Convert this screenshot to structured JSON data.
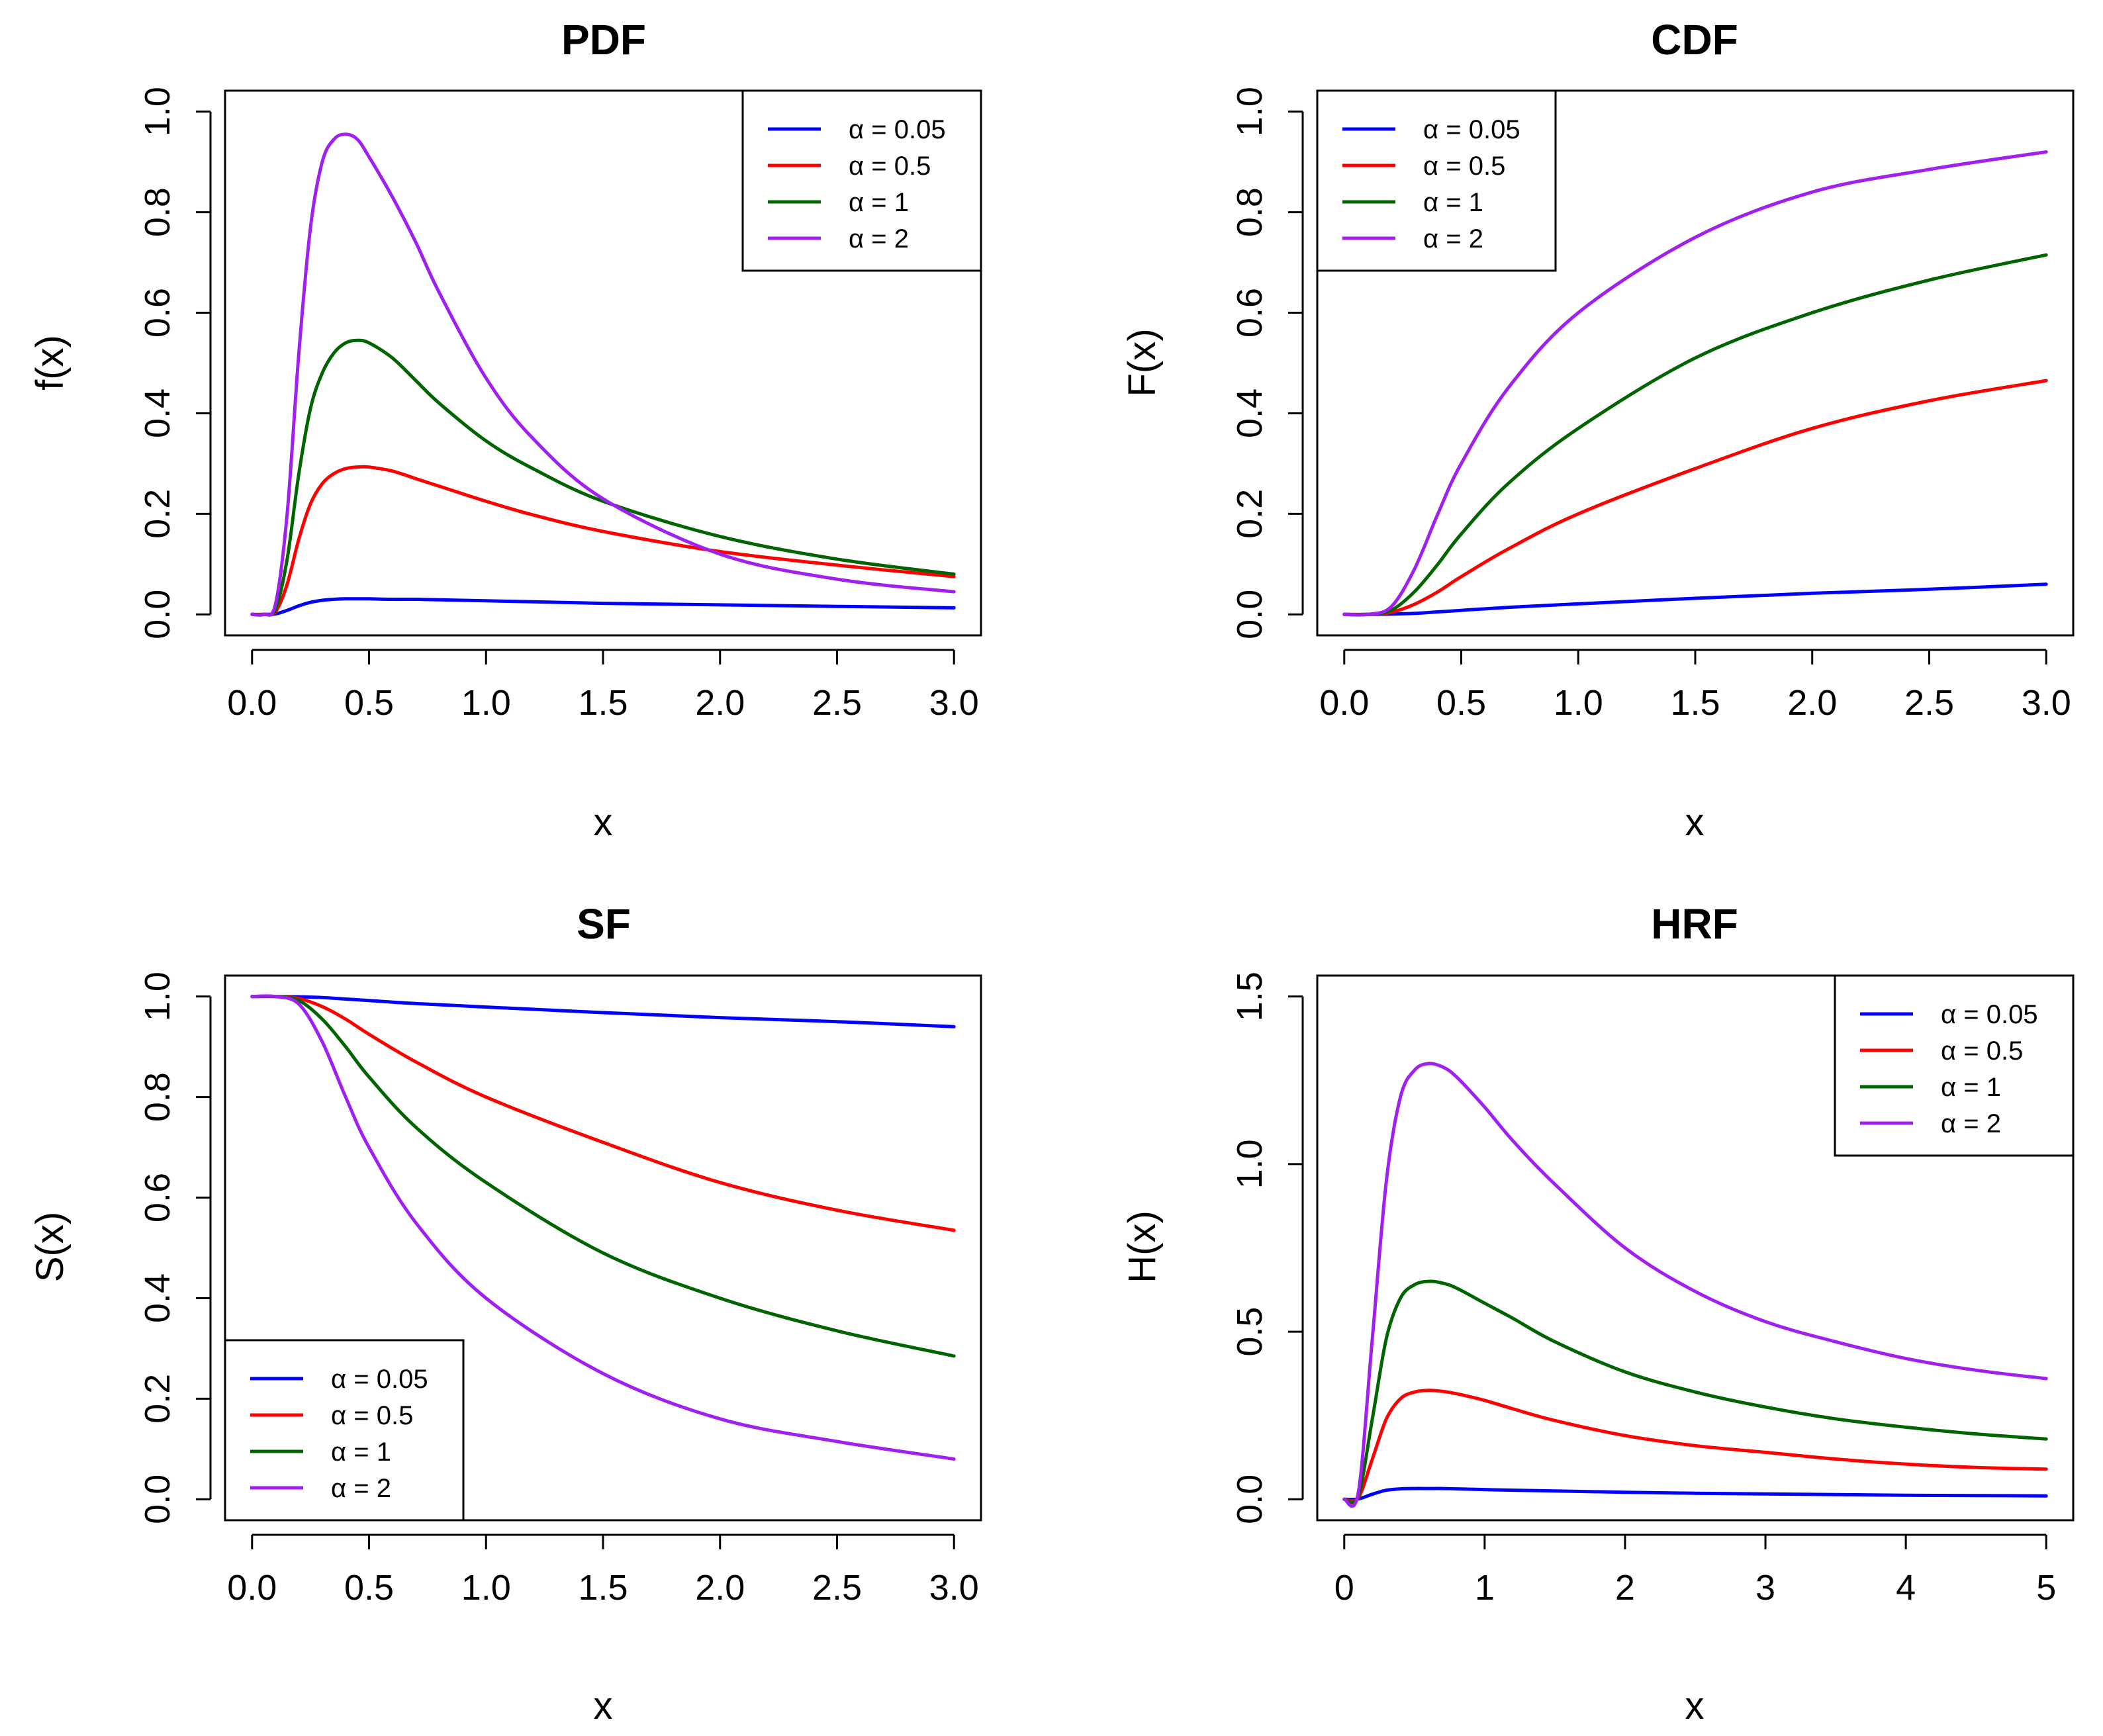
{
  "chart_data": [
    {
      "id": "pdf",
      "type": "line",
      "title": "PDF",
      "xlabel": "x",
      "ylabel": "f(x)",
      "xlim": [
        0,
        3
      ],
      "ylim": [
        0,
        1
      ],
      "xticks": [
        "0.0",
        "0.5",
        "1.0",
        "1.5",
        "2.0",
        "2.5",
        "3.0"
      ],
      "yticks": [
        "0.0",
        "0.2",
        "0.4",
        "0.6",
        "0.8",
        "1.0"
      ],
      "legend_position": "top-right",
      "x": [
        0,
        0.05,
        0.1,
        0.15,
        0.2,
        0.25,
        0.3,
        0.35,
        0.4,
        0.45,
        0.5,
        0.6,
        0.7,
        0.8,
        1.0,
        1.2,
        1.5,
        2.0,
        2.5,
        3.0
      ],
      "series": [
        {
          "name": "α = 0.05",
          "color": "#0000ff",
          "values": [
            0,
            0,
            0.001,
            0.008,
            0.017,
            0.024,
            0.028,
            0.03,
            0.031,
            0.031,
            0.031,
            0.03,
            0.03,
            0.029,
            0.027,
            0.025,
            0.022,
            0.019,
            0.016,
            0.013
          ]
        },
        {
          "name": "α = 0.5",
          "color": "#ff0000",
          "values": [
            0,
            0,
            0.005,
            0.06,
            0.15,
            0.22,
            0.26,
            0.28,
            0.29,
            0.293,
            0.293,
            0.285,
            0.27,
            0.255,
            0.225,
            0.198,
            0.165,
            0.125,
            0.098,
            0.075
          ]
        },
        {
          "name": "α = 1",
          "color": "#006400",
          "values": [
            0,
            0,
            0.01,
            0.11,
            0.28,
            0.41,
            0.48,
            0.52,
            0.54,
            0.545,
            0.54,
            0.51,
            0.465,
            0.42,
            0.345,
            0.29,
            0.225,
            0.155,
            0.11,
            0.08
          ]
        },
        {
          "name": "α = 2",
          "color": "#a020f0",
          "values": [
            0,
            0,
            0.02,
            0.2,
            0.52,
            0.77,
            0.9,
            0.945,
            0.955,
            0.945,
            0.91,
            0.83,
            0.74,
            0.64,
            0.47,
            0.35,
            0.23,
            0.12,
            0.07,
            0.045
          ]
        }
      ]
    },
    {
      "id": "cdf",
      "type": "line",
      "title": "CDF",
      "xlabel": "x",
      "ylabel": "F(x)",
      "xlim": [
        0,
        3
      ],
      "ylim": [
        0,
        1
      ],
      "xticks": [
        "0.0",
        "0.5",
        "1.0",
        "1.5",
        "2.0",
        "2.5",
        "3.0"
      ],
      "yticks": [
        "0.0",
        "0.2",
        "0.4",
        "0.6",
        "0.8",
        "1.0"
      ],
      "legend_position": "top-left",
      "x": [
        0,
        0.1,
        0.2,
        0.3,
        0.4,
        0.5,
        0.7,
        1.0,
        1.5,
        2.0,
        2.5,
        3.0
      ],
      "series": [
        {
          "name": "α = 0.05",
          "color": "#0000ff",
          "values": [
            0,
            0,
            0.0005,
            0.002,
            0.005,
            0.008,
            0.014,
            0.021,
            0.032,
            0.042,
            0.05,
            0.06
          ]
        },
        {
          "name": "α = 0.5",
          "color": "#ff0000",
          "values": [
            0,
            0,
            0.004,
            0.02,
            0.045,
            0.075,
            0.13,
            0.2,
            0.29,
            0.37,
            0.425,
            0.465
          ]
        },
        {
          "name": "α = 1",
          "color": "#006400",
          "values": [
            0,
            0,
            0.008,
            0.045,
            0.1,
            0.16,
            0.26,
            0.37,
            0.51,
            0.6,
            0.665,
            0.715
          ]
        },
        {
          "name": "α = 2",
          "color": "#a020f0",
          "values": [
            0,
            0,
            0.015,
            0.09,
            0.2,
            0.3,
            0.45,
            0.6,
            0.75,
            0.84,
            0.885,
            0.92
          ]
        }
      ]
    },
    {
      "id": "sf",
      "type": "line",
      "title": "SF",
      "xlabel": "x",
      "ylabel": "S(x)",
      "xlim": [
        0,
        3
      ],
      "ylim": [
        0,
        1
      ],
      "xticks": [
        "0.0",
        "0.5",
        "1.0",
        "1.5",
        "2.0",
        "2.5",
        "3.0"
      ],
      "yticks": [
        "0.0",
        "0.2",
        "0.4",
        "0.6",
        "0.8",
        "1.0"
      ],
      "legend_position": "bottom-left",
      "x": [
        0,
        0.1,
        0.2,
        0.3,
        0.4,
        0.5,
        0.7,
        1.0,
        1.5,
        2.0,
        2.5,
        3.0
      ],
      "series": [
        {
          "name": "α = 0.05",
          "color": "#0000ff",
          "values": [
            1,
            1,
            0.9995,
            0.998,
            0.995,
            0.992,
            0.986,
            0.979,
            0.968,
            0.958,
            0.95,
            0.94
          ]
        },
        {
          "name": "α = 0.5",
          "color": "#ff0000",
          "values": [
            1,
            1,
            0.996,
            0.98,
            0.955,
            0.925,
            0.87,
            0.8,
            0.71,
            0.63,
            0.575,
            0.535
          ]
        },
        {
          "name": "α = 1",
          "color": "#006400",
          "values": [
            1,
            1,
            0.992,
            0.955,
            0.9,
            0.84,
            0.74,
            0.63,
            0.49,
            0.4,
            0.335,
            0.285
          ]
        },
        {
          "name": "α = 2",
          "color": "#a020f0",
          "values": [
            1,
            1,
            0.985,
            0.91,
            0.8,
            0.7,
            0.55,
            0.4,
            0.25,
            0.16,
            0.115,
            0.08
          ]
        }
      ]
    },
    {
      "id": "hrf",
      "type": "line",
      "title": "HRF",
      "xlabel": "x",
      "ylabel": "H(x)",
      "xlim": [
        0,
        5
      ],
      "ylim": [
        0,
        1.5
      ],
      "xticks": [
        "0",
        "1",
        "2",
        "3",
        "4",
        "5"
      ],
      "yticks": [
        "0.0",
        "0.5",
        "1.0",
        "1.5"
      ],
      "legend_position": "top-right",
      "x": [
        0,
        0.1,
        0.2,
        0.3,
        0.4,
        0.5,
        0.6,
        0.7,
        0.8,
        1.0,
        1.2,
        1.5,
        2.0,
        2.5,
        3.0,
        3.5,
        4.0,
        4.5,
        5.0
      ],
      "series": [
        {
          "name": "α = 0.05",
          "color": "#0000ff",
          "values": [
            0,
            0.001,
            0.015,
            0.027,
            0.031,
            0.032,
            0.032,
            0.032,
            0.031,
            0.029,
            0.027,
            0.025,
            0.021,
            0.018,
            0.016,
            0.014,
            0.012,
            0.011,
            0.01
          ]
        },
        {
          "name": "α = 0.5",
          "color": "#ff0000",
          "values": [
            0,
            0.005,
            0.12,
            0.24,
            0.3,
            0.32,
            0.325,
            0.322,
            0.315,
            0.295,
            0.27,
            0.235,
            0.19,
            0.16,
            0.14,
            0.12,
            0.105,
            0.095,
            0.09
          ]
        },
        {
          "name": "α = 1",
          "color": "#006400",
          "values": [
            0,
            0.01,
            0.24,
            0.48,
            0.6,
            0.64,
            0.65,
            0.645,
            0.63,
            0.585,
            0.54,
            0.47,
            0.38,
            0.32,
            0.275,
            0.24,
            0.215,
            0.195,
            0.18
          ]
        },
        {
          "name": "α = 2",
          "color": "#a020f0",
          "values": [
            0,
            0.02,
            0.48,
            0.95,
            1.2,
            1.28,
            1.3,
            1.29,
            1.26,
            1.17,
            1.07,
            0.94,
            0.75,
            0.62,
            0.53,
            0.47,
            0.42,
            0.385,
            0.36
          ]
        }
      ]
    }
  ]
}
